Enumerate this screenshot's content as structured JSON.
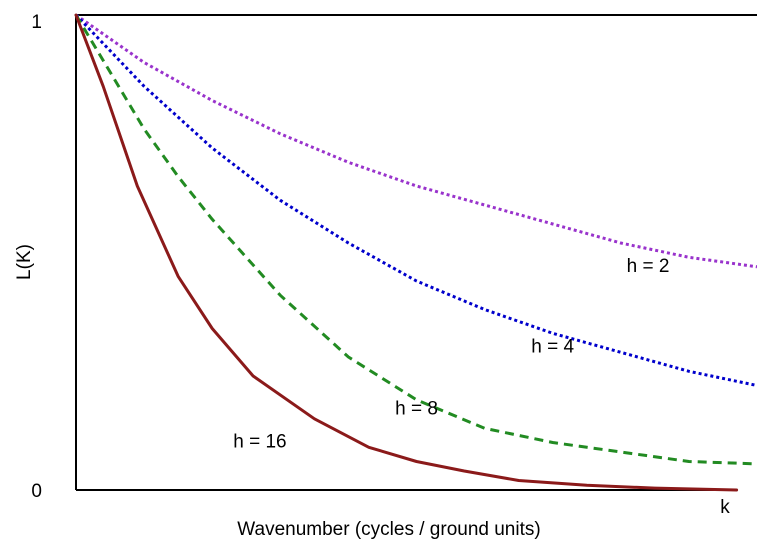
{
  "chart_data": {
    "type": "line",
    "title": "",
    "xlabel": "Wavenumber (cycles / ground units)",
    "ylabel": "L(K)",
    "x_end_label": "k",
    "y_ticks": [
      {
        "value": 0,
        "label": "0"
      },
      {
        "value": 1,
        "label": "1"
      }
    ],
    "xlim": [
      0,
      1
    ],
    "ylim": [
      0,
      1
    ],
    "grid": false,
    "legend": "none",
    "series": [
      {
        "label": "h = 2",
        "color": "#9933cc",
        "style": "dotted",
        "label_x": 0.84,
        "label_y": 0.47,
        "points": [
          [
            0,
            1
          ],
          [
            0.1,
            0.9
          ],
          [
            0.2,
            0.82
          ],
          [
            0.3,
            0.75
          ],
          [
            0.4,
            0.69
          ],
          [
            0.5,
            0.64
          ],
          [
            0.6,
            0.6
          ],
          [
            0.7,
            0.56
          ],
          [
            0.8,
            0.52
          ],
          [
            0.9,
            0.49
          ],
          [
            1.0,
            0.47
          ]
        ]
      },
      {
        "label": "h = 4",
        "color": "#0000cc",
        "style": "dotted",
        "label_x": 0.7,
        "label_y": 0.3,
        "points": [
          [
            0,
            1
          ],
          [
            0.1,
            0.85
          ],
          [
            0.2,
            0.72
          ],
          [
            0.3,
            0.61
          ],
          [
            0.4,
            0.52
          ],
          [
            0.5,
            0.44
          ],
          [
            0.6,
            0.38
          ],
          [
            0.7,
            0.33
          ],
          [
            0.8,
            0.29
          ],
          [
            0.9,
            0.25
          ],
          [
            1.0,
            0.22
          ]
        ]
      },
      {
        "label": "h = 8",
        "color": "#228b22",
        "style": "dashed",
        "label_x": 0.5,
        "label_y": 0.17,
        "points": [
          [
            0,
            1
          ],
          [
            0.05,
            0.88
          ],
          [
            0.1,
            0.76
          ],
          [
            0.15,
            0.66
          ],
          [
            0.2,
            0.57
          ],
          [
            0.3,
            0.41
          ],
          [
            0.4,
            0.28
          ],
          [
            0.5,
            0.19
          ],
          [
            0.6,
            0.13
          ],
          [
            0.7,
            0.1
          ],
          [
            0.8,
            0.08
          ],
          [
            0.9,
            0.06
          ],
          [
            1.0,
            0.055
          ]
        ]
      },
      {
        "label": "h = 16",
        "color": "#8b1a1a",
        "style": "solid",
        "label_x": 0.27,
        "label_y": 0.1,
        "points": [
          [
            0,
            1
          ],
          [
            0.04,
            0.85
          ],
          [
            0.09,
            0.64
          ],
          [
            0.15,
            0.45
          ],
          [
            0.2,
            0.34
          ],
          [
            0.26,
            0.24
          ],
          [
            0.35,
            0.15
          ],
          [
            0.43,
            0.09
          ],
          [
            0.5,
            0.06
          ],
          [
            0.57,
            0.04
          ],
          [
            0.65,
            0.02
          ],
          [
            0.75,
            0.01
          ],
          [
            0.85,
            0.004
          ],
          [
            0.97,
            0
          ]
        ]
      }
    ]
  }
}
